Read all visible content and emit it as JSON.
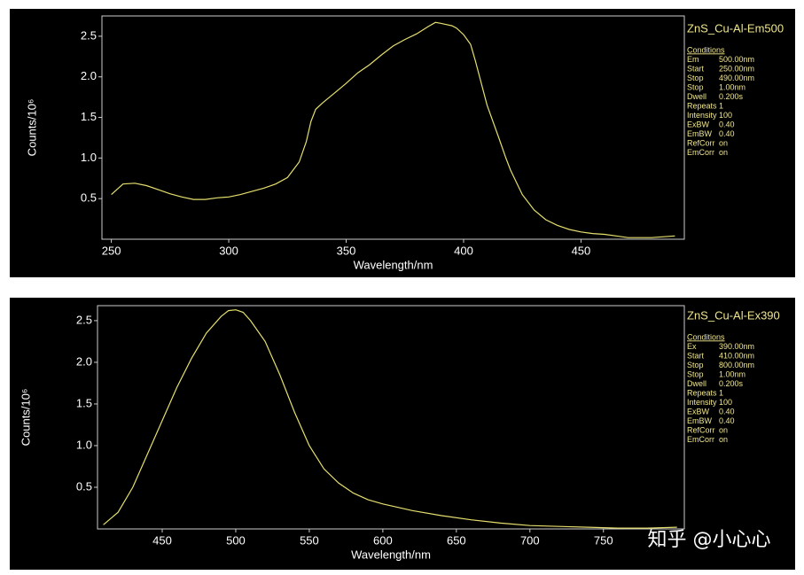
{
  "chart_data": [
    {
      "type": "line",
      "title": "ZnS_Cu-Al-Em500",
      "x_label": "Wavelength/nm",
      "y_label": "Counts/10⁶",
      "color": "#e6df6e",
      "x": [
        250,
        255,
        260,
        265,
        270,
        275,
        280,
        285,
        290,
        295,
        300,
        305,
        310,
        315,
        320,
        325,
        330,
        333,
        335,
        337,
        340,
        345,
        350,
        355,
        360,
        365,
        370,
        375,
        380,
        385,
        388,
        390,
        395,
        397,
        400,
        403,
        405,
        410,
        415,
        418,
        420,
        425,
        430,
        435,
        440,
        445,
        450,
        455,
        460,
        465,
        470,
        480,
        490
      ],
      "values": [
        0.55,
        0.68,
        0.69,
        0.66,
        0.61,
        0.56,
        0.52,
        0.49,
        0.49,
        0.51,
        0.52,
        0.55,
        0.59,
        0.63,
        0.68,
        0.76,
        0.95,
        1.2,
        1.45,
        1.6,
        1.68,
        1.8,
        1.92,
        2.05,
        2.15,
        2.27,
        2.38,
        2.46,
        2.53,
        2.62,
        2.67,
        2.66,
        2.63,
        2.6,
        2.52,
        2.4,
        2.2,
        1.65,
        1.25,
        1.0,
        0.85,
        0.55,
        0.36,
        0.24,
        0.17,
        0.12,
        0.09,
        0.07,
        0.06,
        0.04,
        0.02,
        0.02,
        0.04
      ],
      "xlim": [
        246,
        494
      ],
      "ylim": [
        0,
        2.75
      ],
      "xticks": [
        250,
        300,
        350,
        400,
        450
      ],
      "yticks": [
        0.5,
        {
          "value": 1,
          "label": "1.0"
        },
        1.5,
        {
          "value": 2,
          "label": "2.0"
        },
        2.5
      ],
      "conditions_title": "Conditions",
      "conditions": [
        [
          "Em",
          "500.00nm"
        ],
        [
          "Start",
          "250.00nm"
        ],
        [
          "Stop",
          "490.00nm"
        ],
        [
          "Stop",
          "1.00nm"
        ],
        [
          "Dwell",
          "0.200s"
        ],
        [
          "Repeats",
          "1"
        ],
        [
          "Intensity",
          "100"
        ],
        [
          "ExBW",
          "0.40"
        ],
        [
          "EmBW",
          "0.40"
        ],
        [
          "RefCorr",
          "on"
        ],
        [
          "EmCorr",
          "on"
        ]
      ]
    },
    {
      "type": "line",
      "title": "ZnS_Cu-Al-Ex390",
      "x_label": "Wavelength/nm",
      "y_label": "Counts/10⁶",
      "color": "#e6df6e",
      "x": [
        410,
        420,
        430,
        440,
        450,
        460,
        470,
        480,
        490,
        495,
        500,
        505,
        510,
        520,
        530,
        540,
        550,
        560,
        570,
        580,
        590,
        600,
        620,
        640,
        660,
        680,
        700,
        720,
        740,
        760,
        780,
        800
      ],
      "values": [
        0.05,
        0.2,
        0.5,
        0.9,
        1.3,
        1.7,
        2.05,
        2.35,
        2.55,
        2.62,
        2.63,
        2.6,
        2.5,
        2.25,
        1.85,
        1.4,
        1.0,
        0.72,
        0.55,
        0.43,
        0.35,
        0.3,
        0.22,
        0.16,
        0.11,
        0.07,
        0.04,
        0.03,
        0.02,
        0.01,
        0.01,
        0.02
      ],
      "xlim": [
        406,
        805
      ],
      "ylim": [
        0,
        2.68
      ],
      "xticks": [
        450,
        500,
        550,
        600,
        650,
        700,
        750
      ],
      "yticks": [
        0.5,
        {
          "value": 1,
          "label": "1.0"
        },
        1.5,
        {
          "value": 2,
          "label": "2.0"
        },
        2.5
      ],
      "conditions_title": "Conditions",
      "conditions": [
        [
          "Ex",
          "390.00nm"
        ],
        [
          "Start",
          "410.00nm"
        ],
        [
          "Stop",
          "800.00nm"
        ],
        [
          "Stop",
          "1.00nm"
        ],
        [
          "Dwell",
          "0.200s"
        ],
        [
          "Repeats",
          "1"
        ],
        [
          "Intensity",
          "100"
        ],
        [
          "ExBW",
          "0.40"
        ],
        [
          "EmBW",
          "0.40"
        ],
        [
          "RefCorr",
          "on"
        ],
        [
          "EmCorr",
          "on"
        ]
      ]
    }
  ],
  "watermark": "知乎 @小心心"
}
